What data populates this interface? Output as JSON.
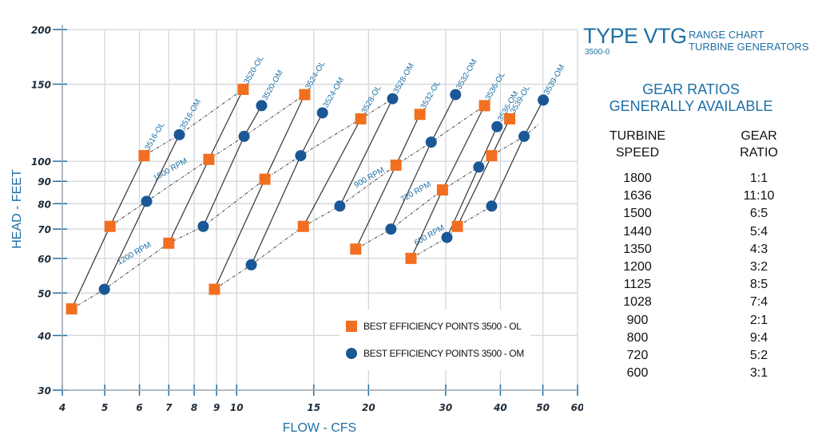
{
  "chart_data": {
    "type": "scatter",
    "xlabel": "FLOW - CFS",
    "ylabel": "HEAD - FEET",
    "x_scale": "log",
    "y_scale": "log",
    "xlim": [
      4,
      60
    ],
    "ylim": [
      30,
      200
    ],
    "grid": true,
    "legend_placement": "bottom-center",
    "x_ticks": [
      4,
      5,
      6,
      7,
      8,
      9,
      10,
      15,
      20,
      30,
      40,
      50,
      60
    ],
    "y_ticks": [
      30,
      40,
      50,
      60,
      70,
      80,
      90,
      100,
      150,
      200
    ],
    "colors": {
      "ol": "#f26f21",
      "om": "#1a5796",
      "label": "#1d6fa5",
      "grid": "#d3d6da",
      "line": "#333333"
    },
    "series": [
      {
        "name": "BEST EFFICIENCY POINTS 3500 - OL",
        "marker": "square",
        "points": [
          [
            4.2,
            46
          ],
          [
            5.14,
            71
          ],
          [
            6.15,
            103
          ],
          [
            7.0,
            65
          ],
          [
            8.64,
            101
          ],
          [
            10.35,
            146
          ],
          [
            8.9,
            51
          ],
          [
            11.6,
            91
          ],
          [
            14.3,
            142
          ],
          [
            14.2,
            71
          ],
          [
            19.2,
            125
          ],
          [
            18.7,
            63
          ],
          [
            23.1,
            98
          ],
          [
            26.2,
            128
          ],
          [
            25,
            60
          ],
          [
            29.5,
            86
          ],
          [
            36.8,
            134
          ],
          [
            31.9,
            71
          ],
          [
            38.2,
            103
          ],
          [
            42,
            125
          ]
        ]
      },
      {
        "name": "BEST EFFICIENCY POINTS 3500 - OM",
        "marker": "circle",
        "points": [
          [
            4.99,
            51
          ],
          [
            6.23,
            81
          ],
          [
            7.4,
            115
          ],
          [
            8.39,
            71
          ],
          [
            10.4,
            114
          ],
          [
            11.4,
            134
          ],
          [
            10.8,
            58
          ],
          [
            14,
            103
          ],
          [
            15.7,
            129
          ],
          [
            17.2,
            79
          ],
          [
            22.7,
            139
          ],
          [
            22.5,
            70
          ],
          [
            27.8,
            110.6
          ],
          [
            31.6,
            142
          ],
          [
            30.2,
            67
          ],
          [
            35.7,
            97
          ],
          [
            39.3,
            120
          ],
          [
            38.2,
            79
          ],
          [
            45.3,
            114
          ],
          [
            50.1,
            138
          ]
        ]
      }
    ],
    "model_lines": [
      {
        "label": "3516-OL",
        "points": [
          [
            4.2,
            46
          ],
          [
            5.14,
            71
          ],
          [
            6.15,
            103
          ]
        ]
      },
      {
        "label": "3516-OM",
        "points": [
          [
            4.99,
            51
          ],
          [
            6.23,
            81
          ],
          [
            7.4,
            115
          ]
        ]
      },
      {
        "label": "3520-OL",
        "points": [
          [
            7.0,
            65
          ],
          [
            8.64,
            101
          ],
          [
            10.35,
            146
          ]
        ]
      },
      {
        "label": "3520-OM",
        "points": [
          [
            8.39,
            71
          ],
          [
            10.4,
            114
          ],
          [
            11.4,
            134
          ]
        ]
      },
      {
        "label": "3524-OL",
        "points": [
          [
            8.9,
            51
          ],
          [
            11.6,
            91
          ],
          [
            14.3,
            142
          ]
        ]
      },
      {
        "label": "3524-OM",
        "points": [
          [
            10.8,
            58
          ],
          [
            14,
            103
          ],
          [
            15.7,
            129
          ]
        ]
      },
      {
        "label": "3528-OL",
        "points": [
          [
            14.2,
            71
          ],
          [
            19.2,
            125
          ]
        ]
      },
      {
        "label": "3528-OM",
        "points": [
          [
            17.2,
            79
          ],
          [
            22.7,
            139
          ]
        ]
      },
      {
        "label": "3532-OL",
        "points": [
          [
            18.7,
            63
          ],
          [
            23.1,
            98
          ],
          [
            26.2,
            128
          ]
        ]
      },
      {
        "label": "3532-OM",
        "points": [
          [
            22.5,
            70
          ],
          [
            27.8,
            110.6
          ],
          [
            31.6,
            142
          ]
        ]
      },
      {
        "label": "3536-OL",
        "points": [
          [
            25,
            60
          ],
          [
            29.5,
            86
          ],
          [
            36.8,
            134
          ]
        ]
      },
      {
        "label": "3536-OM",
        "points": [
          [
            30.2,
            67
          ],
          [
            35.7,
            97
          ],
          [
            39.3,
            120
          ]
        ]
      },
      {
        "label": "3539-OL",
        "points": [
          [
            31.9,
            71
          ],
          [
            38.2,
            103
          ],
          [
            42,
            125
          ]
        ]
      },
      {
        "label": "3539-OM",
        "points": [
          [
            38.2,
            79
          ],
          [
            45.3,
            114
          ],
          [
            50.1,
            138
          ]
        ]
      }
    ],
    "speed_lines": [
      {
        "label": "",
        "points": [
          [
            6.15,
            103
          ],
          [
            7.4,
            115
          ],
          [
            10.35,
            146
          ]
        ]
      },
      {
        "label": "1500 RPM",
        "label_at": [
          7.1,
          94.7
        ],
        "points": [
          [
            5.14,
            71
          ],
          [
            6.23,
            81
          ],
          [
            8.64,
            101
          ],
          [
            10.4,
            114
          ],
          [
            14.3,
            142
          ]
        ]
      },
      {
        "label": "1200 RPM",
        "label_at": [
          5.87,
          60.9
        ],
        "points": [
          [
            4.2,
            46
          ],
          [
            4.99,
            51
          ],
          [
            7.0,
            65
          ],
          [
            8.39,
            71
          ],
          [
            11.6,
            91
          ],
          [
            14,
            103
          ],
          [
            19.2,
            125
          ],
          [
            22.7,
            139
          ]
        ]
      },
      {
        "label": "900 RPM",
        "label_at": [
          20.2,
          90.8
        ],
        "points": [
          [
            8.9,
            51
          ],
          [
            10.8,
            58
          ],
          [
            14.2,
            71
          ],
          [
            17.2,
            79
          ],
          [
            23.1,
            98
          ],
          [
            27.8,
            110.6
          ],
          [
            36.8,
            134
          ]
        ]
      },
      {
        "label": "720 RPM",
        "label_at": [
          25.8,
          84.2
        ],
        "points": [
          [
            18.7,
            63
          ],
          [
            22.5,
            70
          ],
          [
            29.5,
            86
          ],
          [
            35.7,
            97
          ],
          [
            38.2,
            103
          ],
          [
            45.3,
            114
          ],
          [
            49.1,
            121.8
          ]
        ]
      },
      {
        "label": "600 RPM",
        "label_at": [
          27.7,
          67
        ],
        "points": [
          [
            25,
            60
          ],
          [
            30.2,
            67
          ],
          [
            31.9,
            71
          ],
          [
            38.2,
            79
          ]
        ]
      }
    ]
  },
  "panel": {
    "title": "TYPE VTG",
    "model": "3500-0",
    "subtitle_1": "RANGE CHART",
    "subtitle_2": "TURBINE GENERATORS",
    "gear_heading_1": "GEAR RATIOS",
    "gear_heading_2": "GENERALLY AVAILABLE",
    "col_speed_1": "TURBINE",
    "col_speed_2": "SPEED",
    "col_ratio_1": "GEAR",
    "col_ratio_2": "RATIO",
    "rows": [
      {
        "speed": "1800",
        "ratio": "1:1"
      },
      {
        "speed": "1636",
        "ratio": "11:10"
      },
      {
        "speed": "1500",
        "ratio": "6:5"
      },
      {
        "speed": "1440",
        "ratio": "5:4"
      },
      {
        "speed": "1350",
        "ratio": "4:3"
      },
      {
        "speed": "1200",
        "ratio": "3:2"
      },
      {
        "speed": "1125",
        "ratio": "8:5"
      },
      {
        "speed": "1028",
        "ratio": "7:4"
      },
      {
        "speed": "900",
        "ratio": "2:1"
      },
      {
        "speed": "800",
        "ratio": "9:4"
      },
      {
        "speed": "720",
        "ratio": "5:2"
      },
      {
        "speed": "600",
        "ratio": "3:1"
      }
    ]
  }
}
